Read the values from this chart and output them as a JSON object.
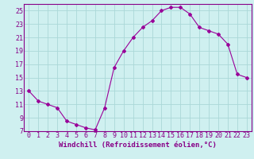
{
  "hours": [
    0,
    1,
    2,
    3,
    4,
    5,
    6,
    7,
    8,
    9,
    10,
    11,
    12,
    13,
    14,
    15,
    16,
    17,
    18,
    19,
    20,
    21,
    22,
    23
  ],
  "values": [
    13,
    11.5,
    11,
    10.5,
    8.5,
    8.0,
    7.5,
    7.2,
    10.5,
    16.5,
    19.0,
    21.0,
    22.5,
    23.5,
    25.0,
    25.5,
    25.5,
    24.5,
    22.5,
    22.0,
    21.5,
    20.0,
    15.5,
    15.0
  ],
  "line_color": "#990099",
  "marker": "D",
  "marker_size": 2.0,
  "bg_color": "#cff0f0",
  "grid_color": "#aad8d8",
  "xlabel": "Windchill (Refroidissement éolien,°C)",
  "ylim": [
    7,
    26
  ],
  "xlim": [
    -0.5,
    23.5
  ],
  "yticks": [
    7,
    9,
    11,
    13,
    15,
    17,
    19,
    21,
    23,
    25
  ],
  "xtick_labels": [
    "0",
    "1",
    "2",
    "3",
    "4",
    "5",
    "6",
    "7",
    "8",
    "9",
    "10",
    "11",
    "12",
    "13",
    "14",
    "15",
    "16",
    "17",
    "18",
    "19",
    "20",
    "21",
    "22",
    "23"
  ],
  "tick_color": "#880088",
  "label_color": "#880088",
  "label_fontsize": 6.5,
  "tick_fontsize": 6.0,
  "spine_color": "#880088"
}
